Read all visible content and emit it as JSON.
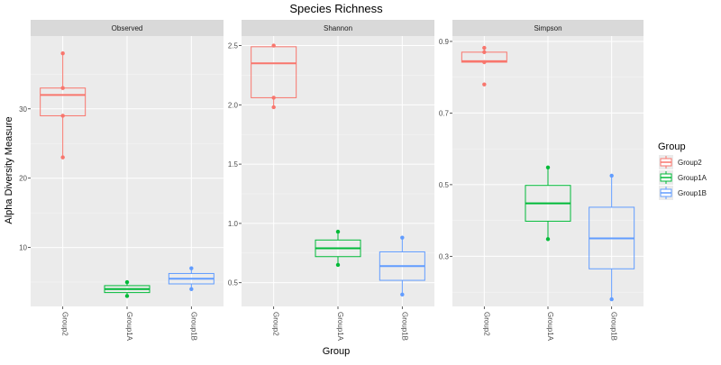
{
  "chart_data": {
    "type": "box",
    "title": "Species Richness",
    "xlabel": "Group",
    "ylabel": "Alpha Diversity Measure",
    "legend": {
      "title": "Group",
      "position": "right",
      "entries": [
        "Group2",
        "Group1A",
        "Group1B"
      ]
    },
    "colors": {
      "Group2": "#F8766D",
      "Group1A": "#00BA38",
      "Group1B": "#619CFF",
      "panel_bg": "#EBEBEB",
      "strip_bg": "#D9D9D9",
      "grid": "#FFFFFF"
    },
    "grid": true,
    "categories": [
      "Group2",
      "Group1A",
      "Group1B"
    ],
    "panels": [
      {
        "name": "Observed",
        "ylim": [
          1.5,
          40.5
        ],
        "yticks": [
          10,
          20,
          30
        ],
        "ytick_labels": [
          "10",
          "20",
          "30"
        ],
        "boxes": {
          "Group2": {
            "q1": 29,
            "median": 32,
            "q3": 33,
            "whisker_low": 23,
            "whisker_high": 38,
            "points": [
              38,
              33,
              29,
              23
            ]
          },
          "Group1A": {
            "q1": 3.5,
            "median": 4,
            "q3": 4.5,
            "whisker_low": 3,
            "whisker_high": 5,
            "points": [
              5,
              3
            ]
          },
          "Group1B": {
            "q1": 4.75,
            "median": 5.5,
            "q3": 6.25,
            "whisker_low": 4,
            "whisker_high": 7,
            "points": [
              7,
              4
            ]
          }
        }
      },
      {
        "name": "Shannon",
        "ylim": [
          0.3,
          2.58
        ],
        "yticks": [
          0.5,
          1.0,
          1.5,
          2.0,
          2.5
        ],
        "ytick_labels": [
          "0.5",
          "1.0",
          "1.5",
          "2.0",
          "2.5"
        ],
        "boxes": {
          "Group2": {
            "q1": 2.06,
            "median": 2.35,
            "q3": 2.49,
            "whisker_low": 1.98,
            "whisker_high": 2.5,
            "points": [
              2.5,
              2.06,
              1.98
            ]
          },
          "Group1A": {
            "q1": 0.72,
            "median": 0.79,
            "q3": 0.86,
            "whisker_low": 0.65,
            "whisker_high": 0.93,
            "points": [
              0.93,
              0.65
            ]
          },
          "Group1B": {
            "q1": 0.52,
            "median": 0.64,
            "q3": 0.76,
            "whisker_low": 0.4,
            "whisker_high": 0.88,
            "points": [
              0.88,
              0.4
            ]
          }
        }
      },
      {
        "name": "Simpson",
        "ylim": [
          0.16,
          0.915
        ],
        "yticks": [
          0.3,
          0.5,
          0.7,
          0.9
        ],
        "ytick_labels": [
          "0.3",
          "0.5",
          "0.7",
          "0.9"
        ],
        "boxes": {
          "Group2": {
            "q1": 0.842,
            "median": 0.845,
            "q3": 0.87,
            "whisker_low": 0.842,
            "whisker_high": 0.882,
            "points": [
              0.882,
              0.87,
              0.842,
              0.78
            ]
          },
          "Group1A": {
            "q1": 0.398,
            "median": 0.448,
            "q3": 0.498,
            "whisker_low": 0.348,
            "whisker_high": 0.548,
            "points": [
              0.548,
              0.348
            ]
          },
          "Group1B": {
            "q1": 0.265,
            "median": 0.35,
            "q3": 0.437,
            "whisker_low": 0.18,
            "whisker_high": 0.525,
            "points": [
              0.525,
              0.18
            ]
          }
        }
      }
    ]
  }
}
